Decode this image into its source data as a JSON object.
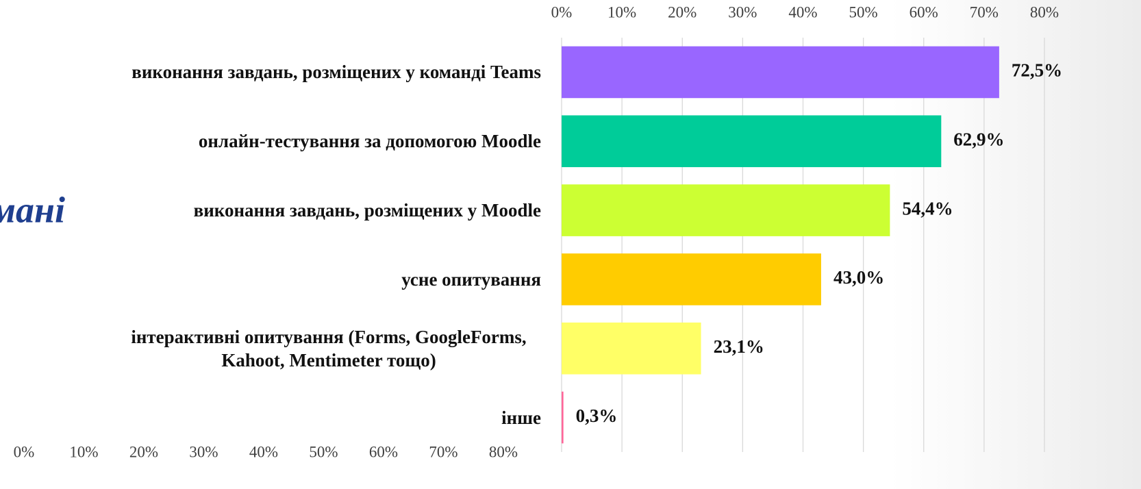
{
  "slide_text": "мані",
  "chart_data": [
    {
      "type": "bar",
      "orientation": "horizontal",
      "categories": [
        "виконання завдань, розміщених у команді Teams",
        "онлайн-тестування за допомогою Moodle",
        "виконання завдань, розміщених у Moodle",
        "усне опитування",
        "інтерактивні опитування (Forms, GoogleForms, Kahoot, Mentimeter тощо)",
        "інше"
      ],
      "values": [
        72.5,
        62.9,
        54.4,
        43.0,
        23.1,
        0.3
      ],
      "value_labels": [
        "72,5%",
        "62,9%",
        "54,4%",
        "43,0%",
        "23,1%",
        "0,3%"
      ],
      "colors": [
        "#9966ff",
        "#00cc99",
        "#ccff33",
        "#ffcc00",
        "#ffff66",
        "#ff6699"
      ],
      "xlim": [
        0,
        80
      ],
      "xticks": [
        {
          "value": 0,
          "label": "0%"
        },
        {
          "value": 10,
          "label": "10%"
        },
        {
          "value": 20,
          "label": "20%"
        },
        {
          "value": 30,
          "label": "30%"
        },
        {
          "value": 40,
          "label": "40%"
        },
        {
          "value": 50,
          "label": "50%"
        },
        {
          "value": 60,
          "label": "60%"
        },
        {
          "value": 70,
          "label": "70%"
        },
        {
          "value": 80,
          "label": "80%"
        }
      ],
      "grid": true,
      "axis_position": "top"
    },
    {
      "type": "bar",
      "orientation": "horizontal",
      "xlim": [
        0,
        80
      ],
      "xticks": [
        {
          "value": 0,
          "label": "0%"
        },
        {
          "value": 10,
          "label": "10%"
        },
        {
          "value": 20,
          "label": "20%"
        },
        {
          "value": 30,
          "label": "30%"
        },
        {
          "value": 40,
          "label": "40%"
        },
        {
          "value": 50,
          "label": "50%"
        },
        {
          "value": 60,
          "label": "60%"
        },
        {
          "value": 70,
          "label": "70%"
        },
        {
          "value": 80,
          "label": "80%"
        }
      ],
      "grid": false,
      "axis_position": "bottom"
    }
  ]
}
